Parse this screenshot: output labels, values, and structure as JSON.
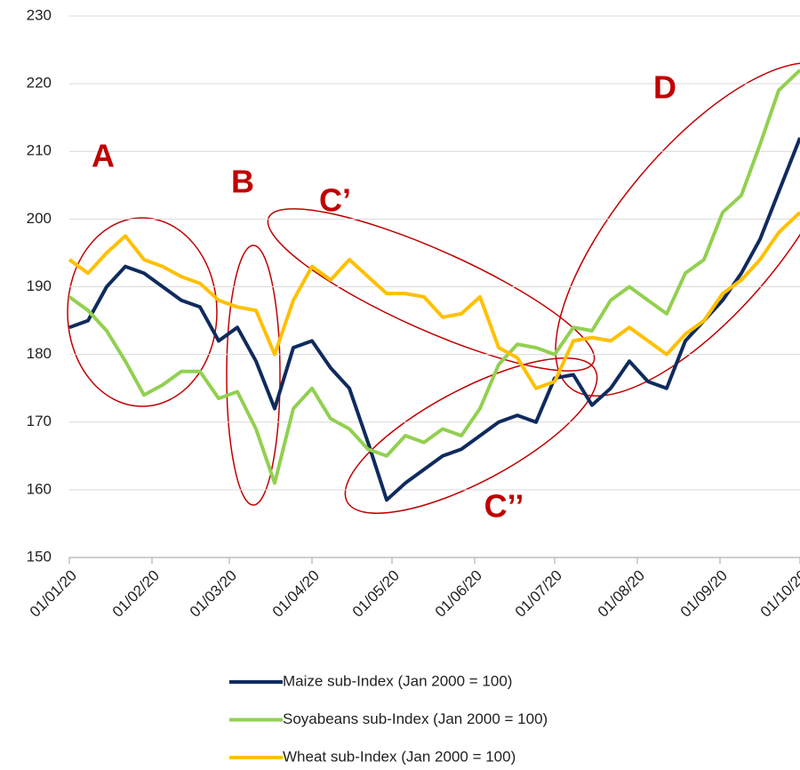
{
  "chart_data": {
    "type": "line",
    "x": [
      "01/01/20",
      "08/01/20",
      "15/01/20",
      "22/01/20",
      "29/01/20",
      "05/02/20",
      "12/02/20",
      "19/02/20",
      "26/02/20",
      "04/03/20",
      "11/03/20",
      "18/03/20",
      "25/03/20",
      "01/04/20",
      "08/04/20",
      "15/04/20",
      "22/04/20",
      "29/04/20",
      "06/05/20",
      "13/05/20",
      "20/05/20",
      "27/05/20",
      "03/06/20",
      "10/06/20",
      "17/06/20",
      "24/06/20",
      "01/07/20",
      "08/07/20",
      "15/07/20",
      "22/07/20",
      "29/07/20",
      "05/08/20",
      "12/08/20",
      "19/08/20",
      "26/08/20",
      "02/09/20",
      "09/09/20",
      "16/09/20",
      "23/09/20",
      "01/10/20"
    ],
    "series": [
      {
        "name": "Maize sub-Index (Jan 2000 = 100)",
        "color": "#0f2b5e",
        "values": [
          184,
          185,
          190,
          193,
          192,
          190,
          188,
          187,
          182,
          184,
          179,
          172,
          181,
          182,
          178,
          175,
          167,
          158.5,
          161,
          163,
          165,
          166,
          168,
          170,
          171,
          170,
          176.5,
          177,
          172.5,
          175,
          179,
          176,
          175,
          182,
          185,
          188,
          192,
          197,
          204,
          212
        ]
      },
      {
        "name": "Soyabeans sub-Index (Jan 2000 = 100)",
        "color": "#92d050",
        "values": [
          188.5,
          186.5,
          183.5,
          179,
          174,
          175.5,
          177.5,
          177.5,
          173.5,
          174.5,
          169,
          161,
          172,
          175,
          170.5,
          169,
          166,
          165,
          168,
          167,
          169,
          168,
          172,
          178.5,
          181.5,
          181,
          180,
          184,
          183.5,
          188,
          190,
          188,
          186,
          192,
          194,
          201,
          203.5,
          211,
          219,
          222
        ]
      },
      {
        "name": "Wheat sub-Index (Jan 2000 = 100)",
        "color": "#ffc000",
        "values": [
          194,
          192,
          195,
          197.5,
          194,
          193,
          191.5,
          190.5,
          188,
          187,
          186.5,
          180,
          188,
          193,
          191,
          194,
          191.5,
          189,
          189,
          188.5,
          185.5,
          186,
          188.5,
          181,
          179.5,
          175,
          176,
          182,
          182.5,
          182,
          184,
          182,
          180,
          183,
          185,
          189,
          191,
          194,
          198,
          201
        ]
      }
    ],
    "xlim": [
      "01/01/20",
      "01/10/20"
    ],
    "xticks": [
      "01/01/20",
      "01/02/20",
      "01/03/20",
      "01/04/20",
      "01/05/20",
      "01/06/20",
      "01/07/20",
      "01/08/20",
      "01/09/20",
      "01/10/20"
    ],
    "ylim": [
      150,
      230
    ],
    "yticks": [
      150,
      160,
      170,
      180,
      190,
      200,
      210,
      220,
      230
    ],
    "grid": true,
    "legend": "bottom",
    "annotations": [
      "A",
      "B",
      "C’",
      "C’’",
      "D"
    ]
  }
}
